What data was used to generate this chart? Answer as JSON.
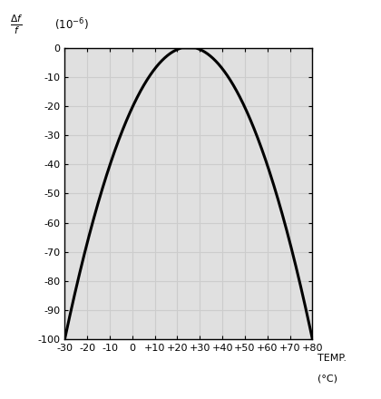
{
  "x_min": -30,
  "x_max": 80,
  "y_min": -100,
  "y_max": 0,
  "x_ticks": [
    -30,
    -20,
    -10,
    0,
    10,
    20,
    30,
    40,
    50,
    60,
    70,
    80
  ],
  "x_tick_labels": [
    "-30",
    "-20",
    "-10",
    "0",
    "+10",
    "+20",
    "+30",
    "+40",
    "+50",
    "+60",
    "+70",
    "+80"
  ],
  "y_ticks": [
    0,
    -10,
    -20,
    -30,
    -40,
    -50,
    -60,
    -70,
    -80,
    -90,
    -100
  ],
  "y_tick_labels": [
    "0",
    "-10",
    "-20",
    "-30",
    "-40",
    "-50",
    "-60",
    "-70",
    "-80",
    "-90",
    "-100"
  ],
  "curve_peak_x": 28,
  "curve_a": -0.034,
  "background_color": "#e0e0e0",
  "grid_color": "#cccccc",
  "curve_color": "#000000",
  "line_width": 2.2,
  "fig_width": 4.2,
  "fig_height": 4.4,
  "dpi": 100
}
